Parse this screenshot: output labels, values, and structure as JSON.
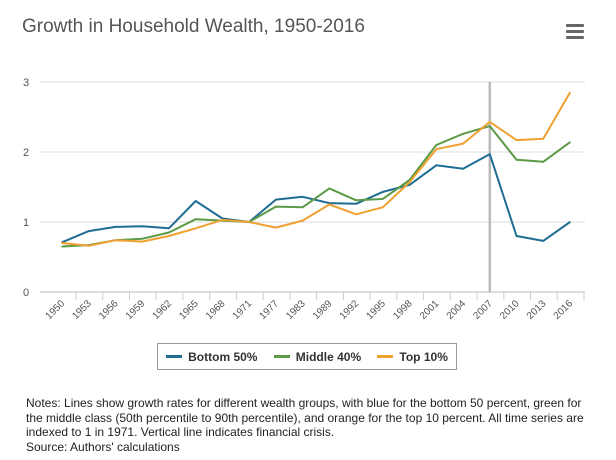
{
  "chart_data": {
    "type": "line",
    "title": "Growth in Household Wealth, 1950-2016",
    "xlabel": "",
    "ylabel": "",
    "categories": [
      "1950",
      "1953",
      "1956",
      "1959",
      "1962",
      "1965",
      "1968",
      "1971",
      "1977",
      "1983",
      "1989",
      "1992",
      "1995",
      "1998",
      "2001",
      "2004",
      "2007",
      "2010",
      "2013",
      "2016"
    ],
    "yticks": [
      "0",
      "1",
      "2",
      "3"
    ],
    "ylim": [
      0,
      3
    ],
    "grid": true,
    "legend_position": "bottom",
    "annotation": {
      "type": "vertical-line",
      "x": "2007",
      "meaning": "financial crisis"
    },
    "series": [
      {
        "name": "Bottom 50%",
        "color": "#1f6d93",
        "values": [
          0.71,
          0.87,
          0.93,
          0.94,
          0.91,
          1.3,
          1.05,
          1.0,
          1.32,
          1.36,
          1.27,
          1.26,
          1.43,
          1.53,
          1.81,
          1.76,
          1.97,
          0.8,
          0.73,
          1.0
        ]
      },
      {
        "name": "Middle 40%",
        "color": "#5b9a46",
        "values": [
          0.65,
          0.67,
          0.74,
          0.76,
          0.85,
          1.04,
          1.02,
          1.0,
          1.22,
          1.21,
          1.48,
          1.31,
          1.33,
          1.6,
          2.1,
          2.26,
          2.37,
          1.89,
          1.86,
          2.14
        ]
      },
      {
        "name": "Top 10%",
        "color": "#f0a030",
        "values": [
          0.7,
          0.66,
          0.74,
          0.72,
          0.8,
          0.91,
          1.03,
          1.0,
          0.92,
          1.02,
          1.25,
          1.11,
          1.21,
          1.57,
          2.04,
          2.12,
          2.43,
          2.17,
          2.19,
          2.85
        ]
      }
    ]
  },
  "notes": "Notes: Lines show growth rates for different wealth groups, with blue for the bottom 50 percent, green for the middle class (50th percentile to 90th percentile), and orange for the top 10 percent. All time series are indexed to 1 in 1971. Vertical line indicates financial crisis.",
  "source": "Source: Authors' calculations"
}
